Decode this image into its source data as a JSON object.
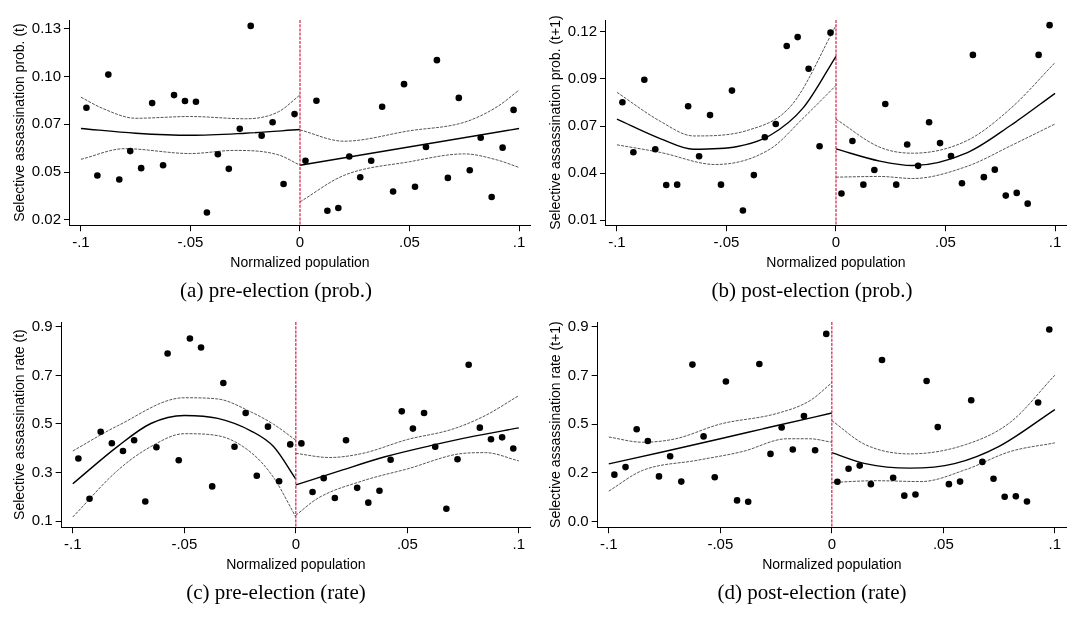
{
  "chart_data": [
    {
      "type": "scatter",
      "title": "(a) pre-election (prob.)",
      "xlabel": "Normalized population",
      "ylabel": "Selective assassination prob. (t)",
      "xlim": [
        -0.105,
        0.105
      ],
      "xticks": [
        {
          "value": -0.1,
          "label": "-.1"
        },
        {
          "value": -0.05,
          "label": "-.05"
        },
        {
          "value": 0,
          "label": "0"
        },
        {
          "value": 0.05,
          "label": ".05"
        },
        {
          "value": 0.1,
          "label": ".1"
        }
      ],
      "ylim": [
        0.017,
        0.135
      ],
      "yticks": [
        {
          "value": 0.02,
          "label": "0.02"
        },
        {
          "value": 0.0475,
          "label": "0.05"
        },
        {
          "value": 0.075,
          "label": "0.07"
        },
        {
          "value": 0.1025,
          "label": "0.10"
        },
        {
          "value": 0.13,
          "label": "0.13"
        }
      ],
      "grid": false,
      "legend": false,
      "ref_lines": [
        {
          "axis": "x",
          "value": 0,
          "color": "#d6204a",
          "line_style": "dashed"
        }
      ],
      "series": [
        {
          "marker": "circle",
          "color": "#000000",
          "x": [
            -0.0975,
            -0.0925,
            -0.0875,
            -0.0825,
            -0.0775,
            -0.0725,
            -0.0675,
            -0.0625,
            -0.0575,
            -0.0525,
            -0.0475,
            -0.0425,
            -0.0375,
            -0.0325,
            -0.0275,
            -0.0225,
            -0.0175,
            -0.0125,
            -0.0075,
            -0.0025,
            0.0025,
            0.0075,
            0.0125,
            0.0175,
            0.0225,
            0.0275,
            0.0325,
            0.0375,
            0.0425,
            0.0475,
            0.0525,
            0.0575,
            0.0625,
            0.0675,
            0.0725,
            0.0775,
            0.0825,
            0.0875,
            0.0925,
            0.0975
          ],
          "values": [
            0.0845,
            0.0456,
            0.1036,
            0.0433,
            0.0596,
            0.0498,
            0.0872,
            0.0515,
            0.0918,
            0.0884,
            0.088,
            0.0243,
            0.0578,
            0.0494,
            0.0724,
            0.1316,
            0.0685,
            0.0762,
            0.0407,
            0.0809,
            0.0541,
            0.0886,
            0.0253,
            0.0269,
            0.0565,
            0.0446,
            0.0541,
            0.0851,
            0.0364,
            0.0981,
            0.0391,
            0.062,
            0.1119,
            0.0442,
            0.0902,
            0.0486,
            0.0673,
            0.0332,
            0.0616,
            0.0833
          ]
        },
        {
          "type": "line",
          "color": "#000000",
          "line_style": "solid",
          "x": [
            -0.1,
            -0.075,
            -0.05,
            -0.025,
            0
          ],
          "values": [
            0.0726,
            0.0699,
            0.0687,
            0.0699,
            0.072
          ]
        },
        {
          "type": "line",
          "color": "#000000",
          "line_style": "solid",
          "x": [
            0,
            0.1
          ],
          "values": [
            0.0515,
            0.0726
          ]
        },
        {
          "type": "line",
          "color": "#555555",
          "line_style": "dashed",
          "x": [
            -0.1,
            -0.09,
            -0.075,
            -0.05,
            -0.025,
            -0.01,
            0
          ],
          "values": [
            0.0906,
            0.0841,
            0.0785,
            0.0795,
            0.0782,
            0.0821,
            0.0919
          ]
        },
        {
          "type": "line",
          "color": "#555555",
          "line_style": "dashed",
          "x": [
            -0.1,
            -0.08,
            -0.05,
            -0.03,
            -0.01,
            0
          ],
          "values": [
            0.0549,
            0.061,
            0.0582,
            0.06,
            0.0575,
            0.0515
          ]
        },
        {
          "type": "line",
          "color": "#555555",
          "line_style": "dashed",
          "x": [
            0,
            0.02,
            0.05,
            0.075,
            0.09,
            0.1
          ],
          "values": [
            0.0718,
            0.0653,
            0.0713,
            0.0762,
            0.0851,
            0.0947
          ]
        },
        {
          "type": "line",
          "color": "#555555",
          "line_style": "dashed",
          "x": [
            0,
            0.02,
            0.05,
            0.075,
            0.09,
            0.1
          ],
          "values": [
            0.0304,
            0.0456,
            0.0535,
            0.058,
            0.0545,
            0.0502
          ]
        }
      ]
    },
    {
      "type": "scatter",
      "title": "(b) post-election (prob.)",
      "xlabel": "Normalized population",
      "ylabel": "Selective assassination prob. (t+1)",
      "xlim": [
        -0.105,
        0.105
      ],
      "xticks": [
        {
          "value": -0.1,
          "label": "-.1"
        },
        {
          "value": -0.05,
          "label": "-.05"
        },
        {
          "value": 0,
          "label": "0"
        },
        {
          "value": 0.05,
          "label": ".05"
        },
        {
          "value": 0.1,
          "label": ".1"
        }
      ],
      "ylim": [
        0.007,
        0.127
      ],
      "yticks": [
        {
          "value": 0.01,
          "label": "0.01"
        },
        {
          "value": 0.0375,
          "label": "0.04"
        },
        {
          "value": 0.065,
          "label": "0.07"
        },
        {
          "value": 0.0925,
          "label": "0.09"
        },
        {
          "value": 0.12,
          "label": "0.12"
        }
      ],
      "grid": false,
      "legend": false,
      "ref_lines": [
        {
          "axis": "x",
          "value": 0,
          "color": "#d6204a",
          "line_style": "dashed"
        }
      ],
      "series": [
        {
          "marker": "circle",
          "color": "#000000",
          "x": [
            -0.0975,
            -0.0925,
            -0.0875,
            -0.0825,
            -0.0775,
            -0.0725,
            -0.0675,
            -0.0625,
            -0.0575,
            -0.0525,
            -0.0475,
            -0.0425,
            -0.0375,
            -0.0325,
            -0.0275,
            -0.0225,
            -0.0175,
            -0.0125,
            -0.0075,
            -0.0025,
            0.0025,
            0.0075,
            0.0125,
            0.0175,
            0.0225,
            0.0275,
            0.0325,
            0.0375,
            0.0425,
            0.0475,
            0.0525,
            0.0575,
            0.0625,
            0.0675,
            0.0725,
            0.0775,
            0.0825,
            0.0875,
            0.0925,
            0.0975
          ],
          "values": [
            0.0789,
            0.0497,
            0.0921,
            0.0514,
            0.0305,
            0.0307,
            0.0766,
            0.0473,
            0.0714,
            0.0307,
            0.0857,
            0.0156,
            0.0363,
            0.0584,
            0.0662,
            0.1118,
            0.117,
            0.0985,
            0.0532,
            0.1196,
            0.0255,
            0.0562,
            0.0307,
            0.0393,
            0.0779,
            0.0307,
            0.0542,
            0.0417,
            0.0672,
            0.055,
            0.0475,
            0.0315,
            0.1066,
            0.0351,
            0.0395,
            0.0243,
            0.0259,
            0.0196,
            0.1066,
            0.124
          ]
        },
        {
          "type": "line",
          "color": "#000000",
          "line_style": "solid",
          "x": [
            -0.1,
            -0.08,
            -0.065,
            -0.045,
            -0.03,
            -0.015,
            0
          ],
          "values": [
            0.069,
            0.0575,
            0.0514,
            0.053,
            0.0596,
            0.0756,
            0.1058
          ]
        },
        {
          "type": "line",
          "color": "#000000",
          "line_style": "solid",
          "x": [
            0,
            0.02,
            0.035,
            0.06,
            0.08,
            0.1
          ],
          "values": [
            0.0516,
            0.0445,
            0.0419,
            0.0495,
            0.0656,
            0.0841
          ]
        },
        {
          "type": "line",
          "color": "#555555",
          "line_style": "dashed",
          "x": [
            -0.1,
            -0.08,
            -0.065,
            -0.04,
            -0.02,
            0
          ],
          "values": [
            0.0847,
            0.0676,
            0.0592,
            0.0626,
            0.0776,
            0.1238
          ]
        },
        {
          "type": "line",
          "color": "#555555",
          "line_style": "dashed",
          "x": [
            -0.1,
            -0.08,
            -0.055,
            -0.03,
            -0.015,
            0
          ],
          "values": [
            0.054,
            0.0495,
            0.0425,
            0.0516,
            0.0696,
            0.0887
          ]
        },
        {
          "type": "line",
          "color": "#555555",
          "line_style": "dashed",
          "x": [
            0,
            0.02,
            0.035,
            0.06,
            0.08,
            0.1
          ],
          "values": [
            0.069,
            0.0526,
            0.0491,
            0.0566,
            0.0756,
            0.1021
          ]
        },
        {
          "type": "line",
          "color": "#555555",
          "line_style": "dashed",
          "x": [
            0,
            0.02,
            0.035,
            0.06,
            0.08,
            0.1
          ],
          "values": [
            0.0351,
            0.0355,
            0.0343,
            0.0415,
            0.0536,
            0.0662
          ]
        }
      ]
    },
    {
      "type": "scatter",
      "title": "(c) pre-election (rate)",
      "xlabel": "Normalized population",
      "ylabel": "Selective assassination rate (t)",
      "xlim": [
        -0.105,
        0.105
      ],
      "xticks": [
        {
          "value": -0.1,
          "label": "-.1"
        },
        {
          "value": -0.05,
          "label": "-.05"
        },
        {
          "value": 0,
          "label": "0"
        },
        {
          "value": 0.05,
          "label": ".05"
        },
        {
          "value": 0.1,
          "label": ".1"
        }
      ],
      "ylim": [
        0.075,
        0.92
      ],
      "yticks": [
        0.1,
        0.3,
        0.5,
        0.7,
        0.9
      ],
      "grid": false,
      "legend": false,
      "ref_lines": [
        {
          "axis": "x",
          "value": 0,
          "color": "#d6204a",
          "line_style": "dashed"
        }
      ],
      "series": [
        {
          "marker": "circle",
          "color": "#000000",
          "x": [
            -0.0975,
            -0.0925,
            -0.0875,
            -0.0825,
            -0.0775,
            -0.0725,
            -0.0675,
            -0.0625,
            -0.0575,
            -0.0525,
            -0.0475,
            -0.0425,
            -0.0375,
            -0.0325,
            -0.0275,
            -0.0225,
            -0.0175,
            -0.0125,
            -0.0075,
            -0.0025,
            0.0025,
            0.0075,
            0.0125,
            0.0175,
            0.0225,
            0.0275,
            0.0325,
            0.0375,
            0.0425,
            0.0475,
            0.0525,
            0.0575,
            0.0625,
            0.0675,
            0.0725,
            0.0775,
            0.0825,
            0.0875,
            0.0925,
            0.0975
          ],
          "values": [
            0.358,
            0.192,
            0.468,
            0.421,
            0.389,
            0.433,
            0.181,
            0.404,
            0.79,
            0.351,
            0.852,
            0.815,
            0.243,
            0.669,
            0.406,
            0.545,
            0.287,
            0.489,
            0.264,
            0.416,
            0.42,
            0.22,
            0.277,
            0.195,
            0.433,
            0.237,
            0.176,
            0.225,
            0.353,
            0.552,
            0.481,
            0.545,
            0.406,
            0.151,
            0.355,
            0.744,
            0.485,
            0.437,
            0.445,
            0.399
          ]
        },
        {
          "type": "line",
          "color": "#000000",
          "line_style": "solid",
          "x": [
            -0.1,
            -0.08,
            -0.065,
            -0.05,
            -0.035,
            -0.02,
            -0.01,
            0
          ],
          "values": [
            0.254,
            0.407,
            0.502,
            0.535,
            0.523,
            0.471,
            0.407,
            0.273
          ]
        },
        {
          "type": "line",
          "color": "#000000",
          "line_style": "solid",
          "x": [
            0,
            0.02,
            0.04,
            0.06,
            0.08,
            0.1
          ],
          "values": [
            0.249,
            0.308,
            0.365,
            0.41,
            0.45,
            0.484
          ]
        },
        {
          "type": "line",
          "color": "#555555",
          "line_style": "dashed",
          "x": [
            -0.1,
            -0.08,
            -0.05,
            -0.035,
            -0.02,
            -0.01,
            0
          ],
          "values": [
            0.389,
            0.492,
            0.608,
            0.603,
            0.549,
            0.499,
            0.433
          ]
        },
        {
          "type": "line",
          "color": "#555555",
          "line_style": "dashed",
          "x": [
            -0.1,
            -0.08,
            -0.065,
            -0.05,
            -0.035,
            -0.02,
            -0.01,
            0
          ],
          "values": [
            0.117,
            0.308,
            0.407,
            0.46,
            0.452,
            0.382,
            0.28,
            0.117
          ]
        },
        {
          "type": "line",
          "color": "#555555",
          "line_style": "dashed",
          "x": [
            0,
            0.015,
            0.03,
            0.05,
            0.07,
            0.085,
            0.1
          ],
          "values": [
            0.379,
            0.362,
            0.379,
            0.436,
            0.478,
            0.535,
            0.617
          ]
        },
        {
          "type": "line",
          "color": "#555555",
          "line_style": "dashed",
          "x": [
            0,
            0.01,
            0.03,
            0.05,
            0.075,
            0.085,
            0.1
          ],
          "values": [
            0.124,
            0.195,
            0.266,
            0.315,
            0.379,
            0.382,
            0.348
          ]
        }
      ]
    },
    {
      "type": "scatter",
      "title": "(d) post-election (rate)",
      "xlabel": "Normalized population",
      "ylabel": "Selective assassination rate (t+1)",
      "xlim": [
        -0.105,
        0.105
      ],
      "xticks": [
        {
          "value": -0.1,
          "label": "-.1"
        },
        {
          "value": -0.05,
          "label": "-.05"
        },
        {
          "value": 0,
          "label": "0"
        },
        {
          "value": 0.05,
          "label": ".05"
        },
        {
          "value": 0.1,
          "label": ".1"
        }
      ],
      "ylim": [
        -0.027,
        0.922
      ],
      "yticks": [
        {
          "value": 0,
          "label": "0.0"
        },
        {
          "value": 0.225,
          "label": "0.2"
        },
        {
          "value": 0.45,
          "label": "0.5"
        },
        {
          "value": 0.675,
          "label": "0.7"
        },
        {
          "value": 0.9,
          "label": "0.9"
        }
      ],
      "grid": false,
      "legend": false,
      "ref_lines": [
        {
          "axis": "x",
          "value": 0,
          "color": "#d6204a",
          "line_style": "dashed"
        }
      ],
      "series": [
        {
          "marker": "circle",
          "color": "#000000",
          "x": [
            -0.0975,
            -0.0925,
            -0.0875,
            -0.0825,
            -0.0775,
            -0.0725,
            -0.0675,
            -0.0625,
            -0.0575,
            -0.0525,
            -0.0475,
            -0.0425,
            -0.0375,
            -0.0325,
            -0.0275,
            -0.0225,
            -0.0175,
            -0.0125,
            -0.0075,
            -0.0025,
            0.0025,
            0.0075,
            0.0125,
            0.0175,
            0.0225,
            0.0275,
            0.0325,
            0.0375,
            0.0425,
            0.0475,
            0.0525,
            0.0575,
            0.0625,
            0.0675,
            0.0725,
            0.0775,
            0.0825,
            0.0875,
            0.0925,
            0.0975
          ],
          "values": [
            0.216,
            0.251,
            0.426,
            0.372,
            0.208,
            0.301,
            0.184,
            0.725,
            0.393,
            0.204,
            0.647,
            0.097,
            0.091,
            0.728,
            0.312,
            0.434,
            0.332,
            0.487,
            0.329,
            0.867,
            0.183,
            0.243,
            0.258,
            0.172,
            0.746,
            0.202,
            0.119,
            0.124,
            0.649,
            0.436,
            0.172,
            0.184,
            0.56,
            0.275,
            0.197,
            0.114,
            0.116,
            0.092,
            0.55,
            0.887
          ]
        },
        {
          "type": "line",
          "color": "#000000",
          "line_style": "solid",
          "x": [
            -0.1,
            -0.075,
            -0.05,
            -0.025,
            0
          ],
          "values": [
            0.266,
            0.323,
            0.382,
            0.442,
            0.501
          ]
        },
        {
          "type": "line",
          "color": "#000000",
          "line_style": "solid",
          "x": [
            0,
            0.015,
            0.035,
            0.055,
            0.075,
            0.1
          ],
          "values": [
            0.318,
            0.267,
            0.246,
            0.267,
            0.347,
            0.517
          ]
        },
        {
          "type": "line",
          "color": "#555555",
          "line_style": "dashed",
          "x": [
            -0.1,
            -0.085,
            -0.07,
            -0.05,
            -0.025,
            -0.01,
            0
          ],
          "values": [
            0.39,
            0.366,
            0.382,
            0.45,
            0.498,
            0.557,
            0.641
          ]
        },
        {
          "type": "line",
          "color": "#555555",
          "line_style": "dashed",
          "x": [
            -0.1,
            -0.085,
            -0.06,
            -0.04,
            -0.02,
            -0.01,
            0
          ],
          "values": [
            0.14,
            0.235,
            0.283,
            0.323,
            0.382,
            0.382,
            0.366
          ]
        },
        {
          "type": "line",
          "color": "#555555",
          "line_style": "dashed",
          "x": [
            0,
            0.015,
            0.035,
            0.06,
            0.08,
            0.1
          ],
          "values": [
            0.466,
            0.355,
            0.312,
            0.355,
            0.458,
            0.676
          ]
        },
        {
          "type": "line",
          "color": "#555555",
          "line_style": "dashed",
          "x": [
            0,
            0.02,
            0.04,
            0.06,
            0.08,
            0.1
          ],
          "values": [
            0.18,
            0.188,
            0.184,
            0.239,
            0.323,
            0.363
          ]
        }
      ]
    }
  ]
}
